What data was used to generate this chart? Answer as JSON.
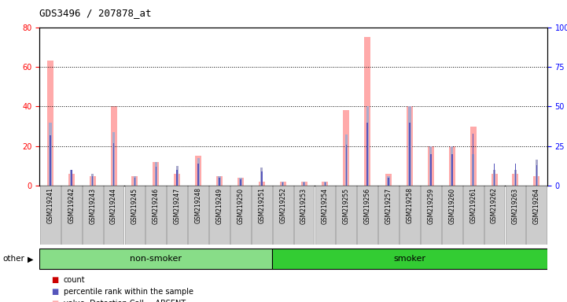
{
  "title": "GDS3496 / 207878_at",
  "samples": [
    "GSM219241",
    "GSM219242",
    "GSM219243",
    "GSM219244",
    "GSM219245",
    "GSM219246",
    "GSM219247",
    "GSM219248",
    "GSM219249",
    "GSM219250",
    "GSM219251",
    "GSM219252",
    "GSM219253",
    "GSM219254",
    "GSM219255",
    "GSM219256",
    "GSM219257",
    "GSM219258",
    "GSM219259",
    "GSM219260",
    "GSM219261",
    "GSM219262",
    "GSM219263",
    "GSM219264"
  ],
  "count": [
    2,
    1,
    1,
    2,
    1,
    1,
    1,
    1,
    1,
    1,
    1,
    1,
    1,
    1,
    2,
    2,
    1,
    2,
    1,
    1,
    2,
    1,
    1,
    1
  ],
  "percentile_rank": [
    32,
    10,
    6,
    27,
    5,
    12,
    10,
    14,
    5,
    4,
    9,
    2,
    2,
    2,
    26,
    40,
    5,
    40,
    20,
    20,
    33,
    14,
    14,
    13
  ],
  "value_absent": [
    63,
    6,
    5,
    40,
    5,
    12,
    6,
    15,
    5,
    4,
    2,
    2,
    2,
    2,
    38,
    75,
    6,
    40,
    20,
    20,
    30,
    6,
    6,
    5
  ],
  "rank_absent": [
    32,
    8,
    6,
    27,
    5,
    12,
    10,
    14,
    5,
    4,
    9,
    2,
    2,
    2,
    26,
    40,
    5,
    40,
    20,
    20,
    16,
    8,
    8,
    13
  ],
  "group": [
    "non-smoker",
    "non-smoker",
    "non-smoker",
    "non-smoker",
    "non-smoker",
    "non-smoker",
    "non-smoker",
    "non-smoker",
    "non-smoker",
    "non-smoker",
    "non-smoker",
    "smoker",
    "smoker",
    "smoker",
    "smoker",
    "smoker",
    "smoker",
    "smoker",
    "smoker",
    "smoker",
    "smoker",
    "smoker",
    "smoker",
    "smoker"
  ],
  "ylim_left": [
    0,
    80
  ],
  "ylim_right": [
    0,
    100
  ],
  "yticks_left": [
    0,
    20,
    40,
    60,
    80
  ],
  "yticks_right": [
    0,
    25,
    50,
    75,
    100
  ],
  "color_count": "#cc0000",
  "color_rank": "#5555bb",
  "color_value_absent": "#ffaaaa",
  "color_rank_absent": "#aaaacc",
  "color_nonsmoker": "#88dd88",
  "color_smoker": "#33cc33",
  "bg_xticklabel": "#cccccc"
}
